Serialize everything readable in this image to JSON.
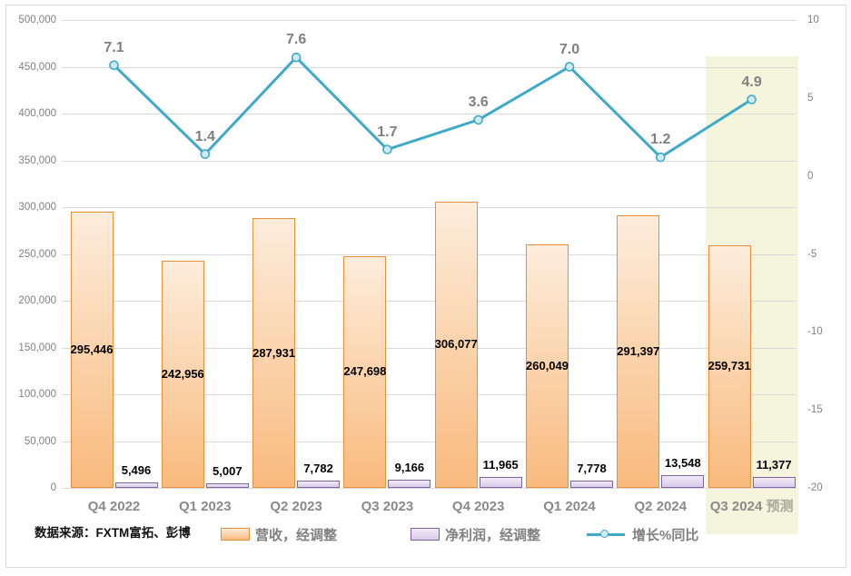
{
  "source_note": "数据来源：FXTM富拓、彭博",
  "colors": {
    "grid": "#d9d9d9",
    "frame_border": "#d9d9d9",
    "axis_text": "#7f7f7f",
    "x_label_text": "#8a8a8a",
    "forecast_text": "#a9a79a",
    "highlight_band": "#f5f5de",
    "revenue_fill_top": "#fdeddc",
    "revenue_fill_bottom": "#f9ba7d",
    "revenue_border": "#e78f3c",
    "profit_fill_top": "#f0ebf7",
    "profit_fill_bottom": "#d8cbe8",
    "profit_border": "#8064a2",
    "line_color": "#3fa9c9",
    "marker_fill": "#cdeaf5"
  },
  "chart_data": {
    "type": "combo",
    "categories": [
      "Q4 2022",
      "Q1 2023",
      "Q2 2023",
      "Q3 2023",
      "Q4 2023",
      "Q1 2024",
      "Q2 2024",
      "Q3 2024"
    ],
    "forecast": {
      "index": 7,
      "suffix": "预测"
    },
    "series": [
      {
        "name": "营收，经调整",
        "type": "bar",
        "axis": "left",
        "values": [
          295446,
          242956,
          287931,
          247698,
          306077,
          260049,
          291397,
          259731
        ],
        "labels": [
          "295,446",
          "242,956",
          "287,931",
          "247,698",
          "306,077",
          "260,049",
          "291,397",
          "259,731"
        ]
      },
      {
        "name": "净利润，经调整",
        "type": "bar",
        "axis": "left",
        "values": [
          5496,
          5007,
          7782,
          9166,
          11965,
          7778,
          13548,
          11377
        ],
        "labels": [
          "5,496",
          "5,007",
          "7,782",
          "9,166",
          "11,965",
          "7,778",
          "13,548",
          "11,377"
        ]
      },
      {
        "name": "增长%同比",
        "type": "line",
        "axis": "right",
        "values": [
          7.1,
          1.4,
          7.6,
          1.7,
          3.6,
          7.0,
          1.2,
          4.9
        ],
        "labels": [
          "7.1",
          "1.4",
          "7.6",
          "1.7",
          "3.6",
          "7.0",
          "1.2",
          "4.9"
        ]
      }
    ],
    "left_axis": {
      "min": 0,
      "max": 500000,
      "tick_labels": [
        "500,000",
        "450,000",
        "400,000",
        "350,000",
        "300,000",
        "250,000",
        "200,000",
        "150,000",
        "100,000",
        "50,000",
        "0"
      ]
    },
    "right_axis": {
      "min": -20,
      "max": 10,
      "tick_labels": [
        "10",
        "5",
        "0",
        "-5",
        "-10",
        "-15",
        "-20"
      ]
    },
    "grid": "horizontal",
    "legend_position": "bottom"
  }
}
